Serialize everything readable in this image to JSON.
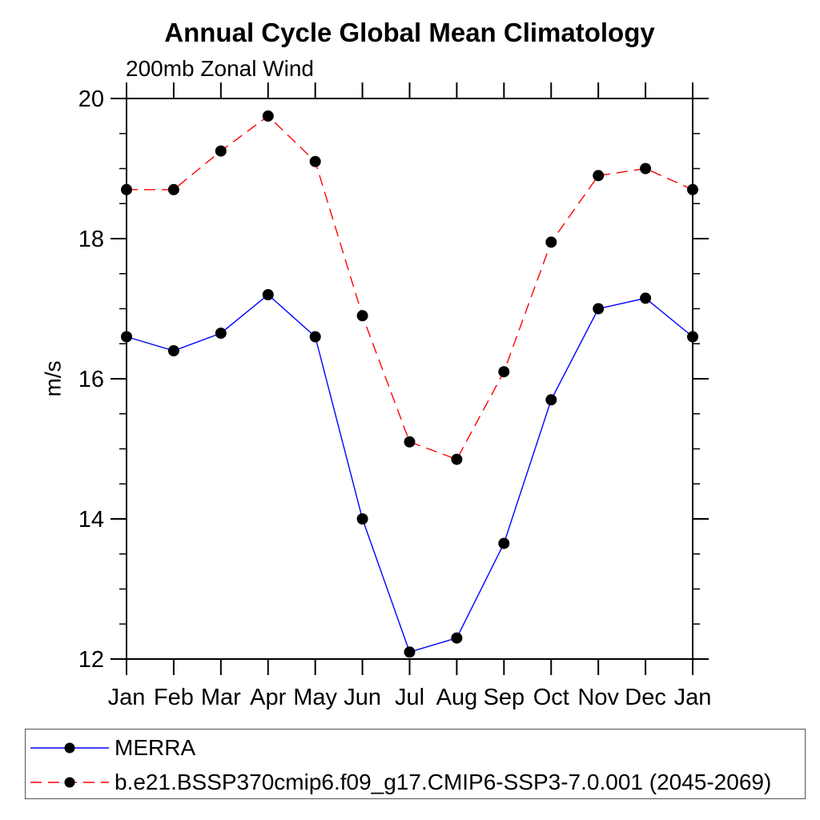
{
  "page": {
    "background": "#ffffff"
  },
  "chart_data": {
    "type": "line",
    "title": "Annual Cycle Global Mean Climatology",
    "subtitle": "200mb Zonal Wind",
    "ylabel": "m/s",
    "categories": [
      "Jan",
      "Feb",
      "Mar",
      "Apr",
      "May",
      "Jun",
      "Jul",
      "Aug",
      "Sep",
      "Oct",
      "Nov",
      "Dec",
      "Jan"
    ],
    "ylim": [
      12,
      20
    ],
    "y_major_ticks": [
      12,
      14,
      16,
      18,
      20
    ],
    "y_minor_step": 0.5,
    "grid": false,
    "legend_position": "bottom-left-box",
    "axis_color": "#000000",
    "marker": "filled-circle",
    "marker_color": "#000000",
    "series": [
      {
        "name": "MERRA",
        "color": "#0000ff",
        "line_style": "solid",
        "values": [
          16.6,
          16.4,
          16.65,
          17.2,
          16.6,
          14.0,
          12.1,
          12.3,
          13.65,
          15.7,
          17.0,
          17.15,
          16.6
        ]
      },
      {
        "name": "b.e21.BSSP370cmip6.f09_g17.CMIP6-SSP3-7.0.001 (2045-2069)",
        "color": "#ff0000",
        "line_style": "dashed",
        "values": [
          18.7,
          18.7,
          19.25,
          19.75,
          19.1,
          16.9,
          15.1,
          14.85,
          16.1,
          17.95,
          18.9,
          19.0,
          18.7
        ]
      }
    ]
  }
}
